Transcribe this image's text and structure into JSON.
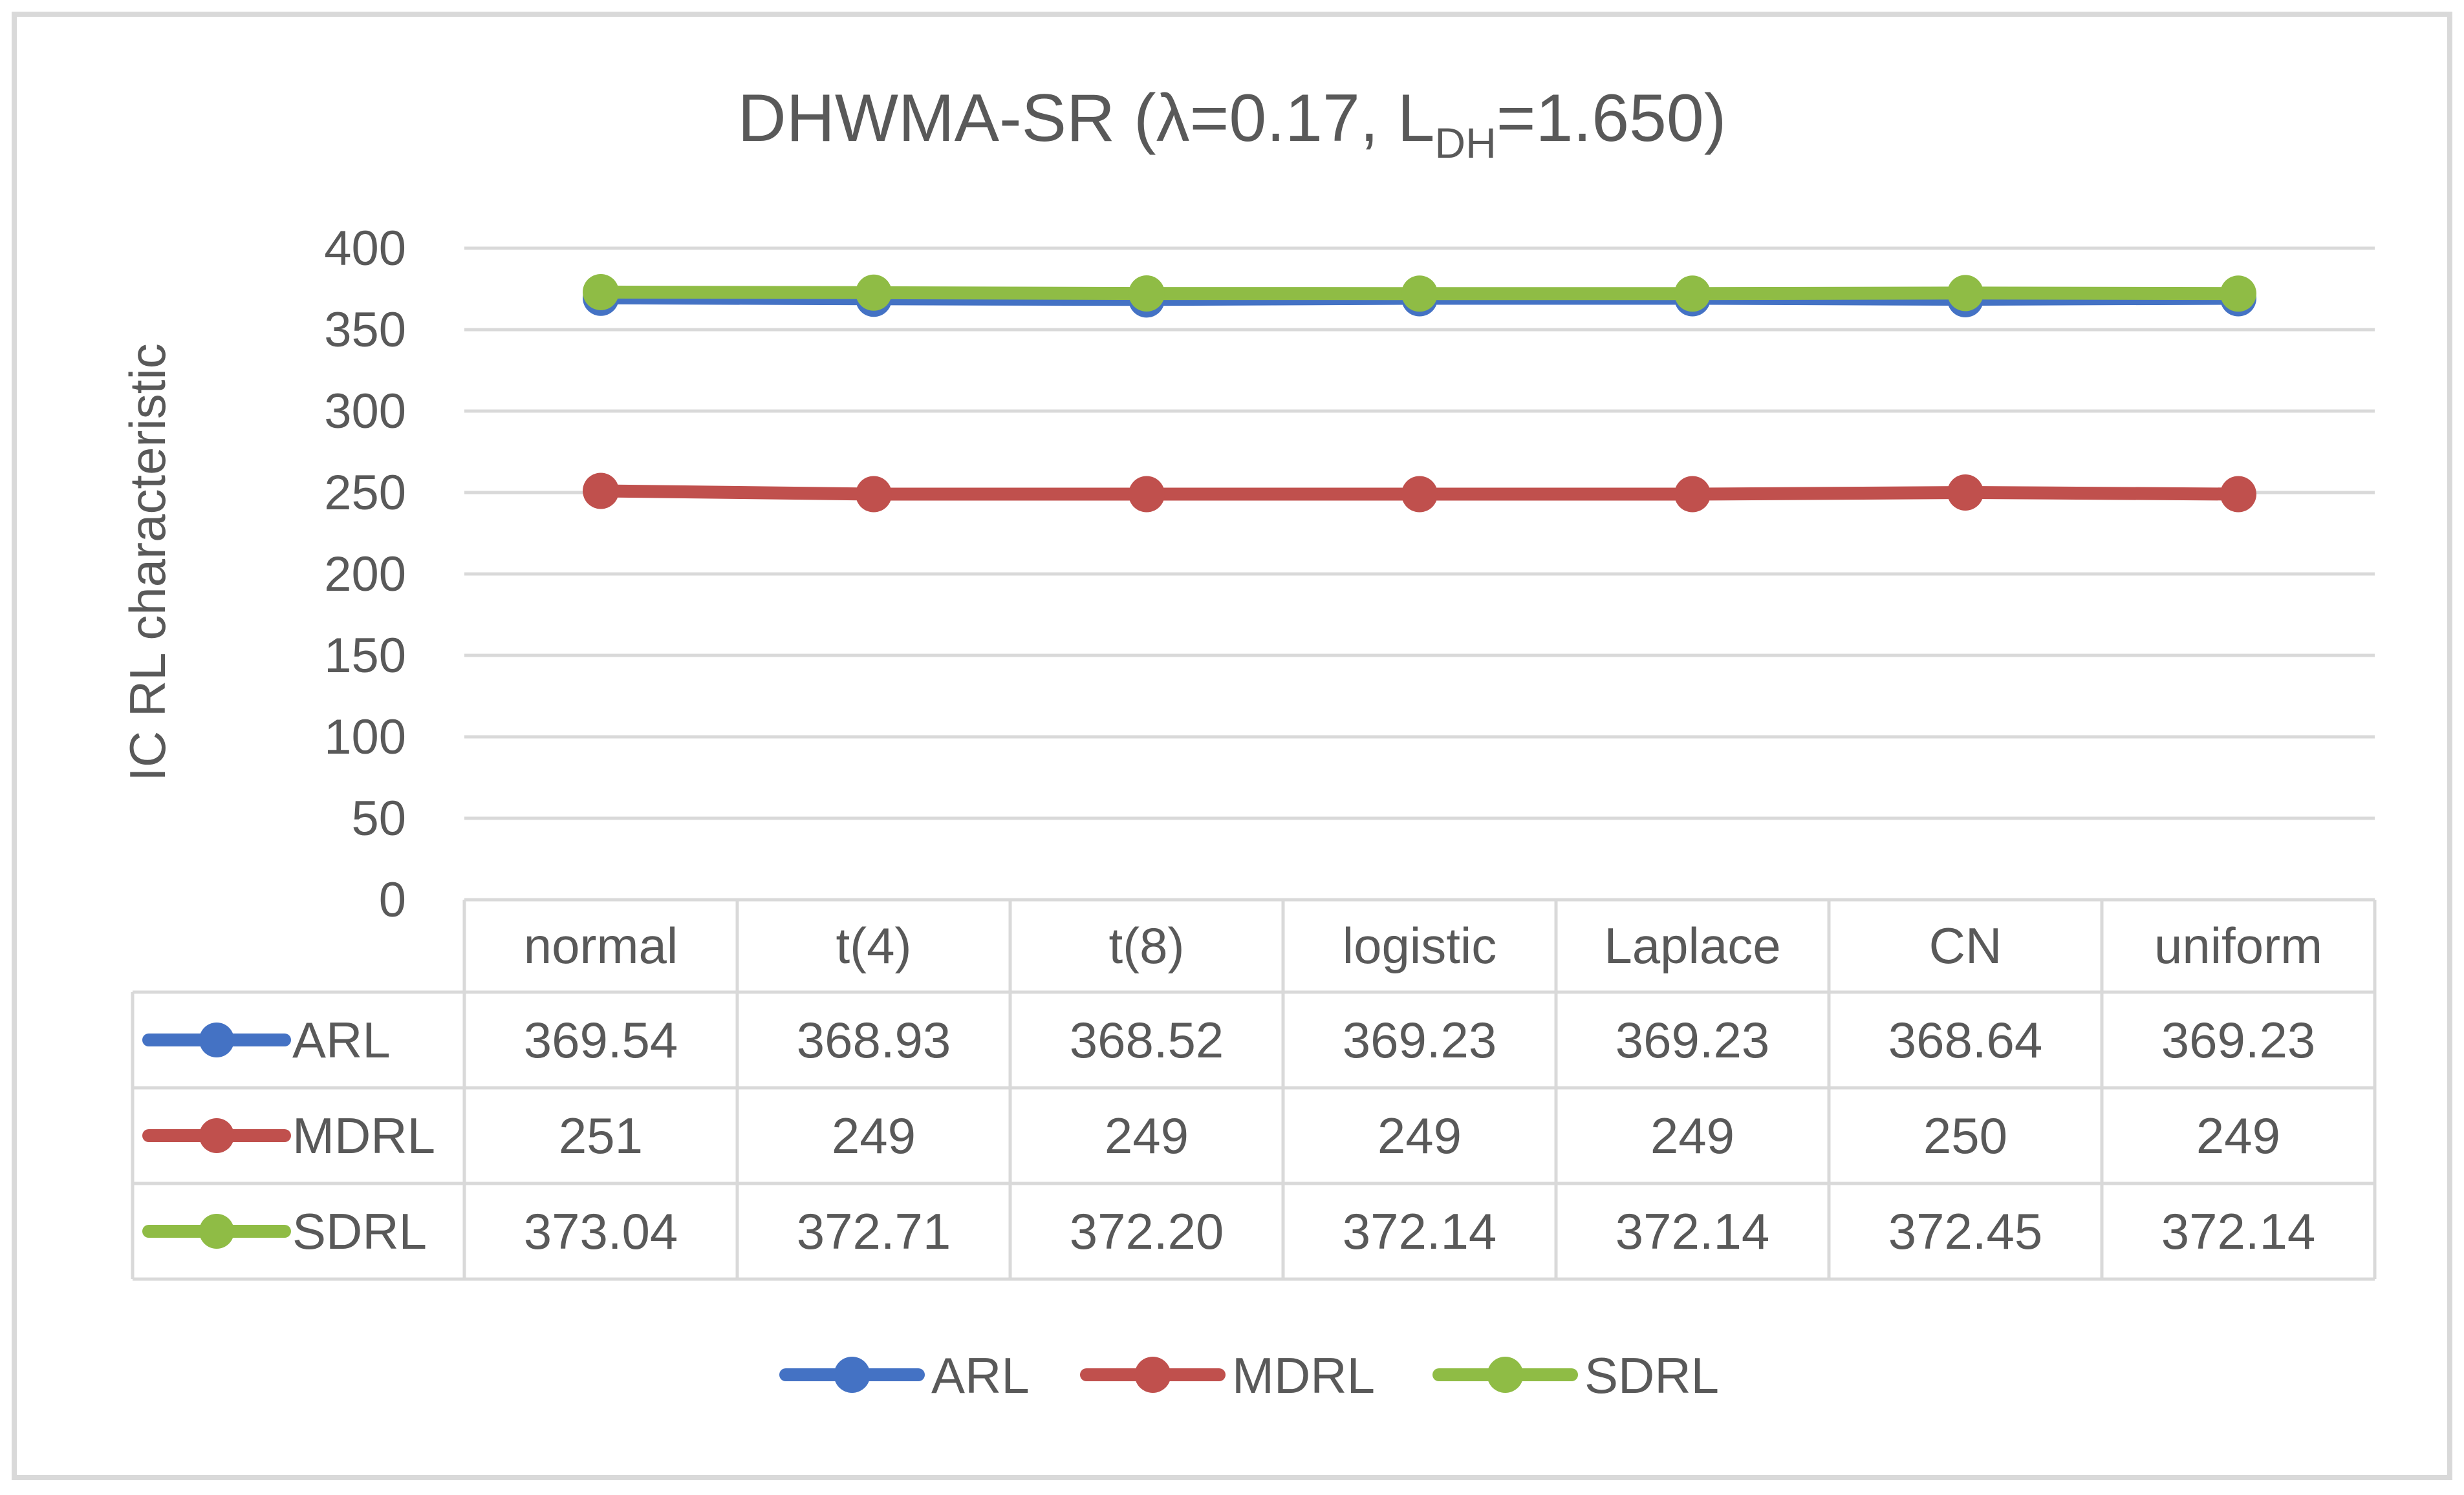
{
  "chart_data": {
    "type": "line",
    "title": {
      "main": "DHWMA-SR (λ=0.17, L",
      "subscript": "DH",
      "tail": "=1.650)"
    },
    "xlabel": "",
    "ylabel": "IC RL characteristic",
    "ylim": [
      0,
      400
    ],
    "yticks": [
      0,
      50,
      100,
      150,
      200,
      250,
      300,
      350,
      400
    ],
    "grid": true,
    "legend_position": "bottom",
    "data_table": true,
    "categories": [
      "normal",
      "t(4)",
      "t(8)",
      "logistic",
      "Laplace",
      "CN",
      "uniform"
    ],
    "series": [
      {
        "name": "ARL",
        "color": "#4472c4",
        "values": [
          369.54,
          368.93,
          368.52,
          369.23,
          369.23,
          368.64,
          369.23
        ],
        "labels": [
          "369.54",
          "368.93",
          "368.52",
          "369.23",
          "369.23",
          "368.64",
          "369.23"
        ]
      },
      {
        "name": "MDRL",
        "color": "#c0504d",
        "values": [
          251,
          249,
          249,
          249,
          249,
          250,
          249
        ],
        "labels": [
          "251",
          "249",
          "249",
          "249",
          "249",
          "250",
          "249"
        ]
      },
      {
        "name": "SDRL",
        "color": "#8fbc45",
        "values": [
          373.04,
          372.71,
          372.2,
          372.14,
          372.14,
          372.45,
          372.14
        ],
        "labels": [
          "373.04",
          "372.71",
          "372.20",
          "372.14",
          "372.14",
          "372.45",
          "372.14"
        ]
      }
    ]
  }
}
